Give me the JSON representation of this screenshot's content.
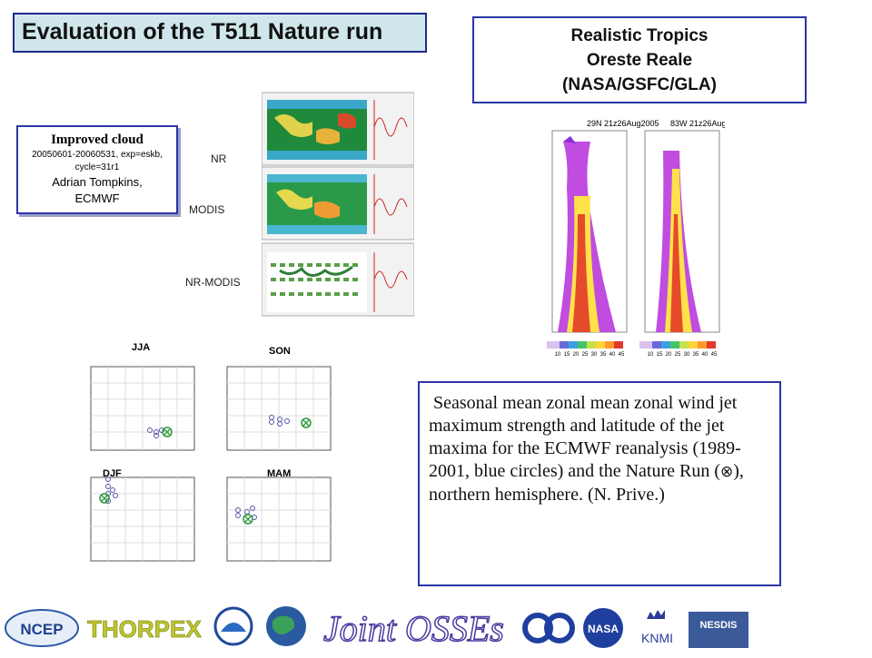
{
  "title": "Evaluation of the T511 Nature run",
  "tropics": {
    "line1": "Realistic Tropics",
    "line2": "Oreste Reale",
    "line3": "(NASA/GSFC/GLA)",
    "panel_left": "29N 21z26Aug2005",
    "panel_right": "83W 21z26Aug2005",
    "colorbar_ticks": [
      "10",
      "15",
      "20",
      "25",
      "30",
      "35",
      "40",
      "45"
    ]
  },
  "cloud": {
    "heading": "Improved cloud",
    "dates": "20050601-20060531, exp=eskb,",
    "cycle": "cycle=31r1",
    "author": "Adrian Tompkins,",
    "org": "ECMWF"
  },
  "rows": {
    "nr": "NR",
    "modis": "MODIS",
    "diff": "NR-MODIS"
  },
  "seasons": {
    "jja": "JJA",
    "son": "SON",
    "djf": "DJF",
    "mam": "MAM"
  },
  "caption": {
    "before": "Seasonal mean zonal mean zonal wind jet maximum strength and latitude of the jet maxima for the ECMWF reanalysis (1989-2001, blue circles) and the Nature Run (",
    "symbol": "⊗",
    "after": "), northern hemisphere.  (N. Prive.)"
  },
  "logos": {
    "ncep": "NCEP",
    "thorpex": "THORPEX",
    "joint": "Joint OSSEs",
    "knmi": "KNMI",
    "nasa": "NASA",
    "nesdis": "NESDIS"
  },
  "colors": {
    "accent": "#2b35a8",
    "title_bg": "#cfe7ea"
  }
}
